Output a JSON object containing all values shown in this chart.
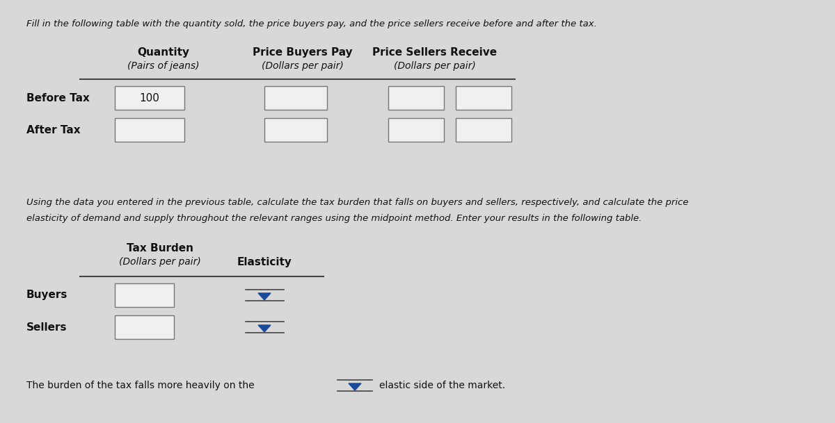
{
  "bg_color": "#d8d8d8",
  "title_text": "Fill in the following table with the quantity sold, the price buyers pay, and the price sellers receive before and after the tax.",
  "table1_col_headers": [
    "Quantity",
    "Price Buyers Pay",
    "Price Sellers Receive"
  ],
  "table1_col_subheaders": [
    "(Pairs of jeans)",
    "(Dollars per pair)",
    "(Dollars per pair)"
  ],
  "table1_rows": [
    "Before Tax",
    "After Tax"
  ],
  "table1_value": "100",
  "table2_instruction_line1": "Using the data you entered in the previous table, calculate the tax burden that falls on buyers and sellers, respectively, and calculate the price",
  "table2_instruction_line2": "elasticity of demand and supply throughout the relevant ranges using the midpoint method. Enter your results in the following table.",
  "table2_header1": "Tax Burden",
  "table2_subheader1": "(Dollars per pair)",
  "table2_subheader2": "Elasticity",
  "table2_rows": [
    "Buyers",
    "Sellers"
  ],
  "footer_text1": "The burden of the tax falls more heavily on the",
  "footer_text2": "elastic side of the market.",
  "box_facecolor": "#f0f0f0",
  "box_edgecolor": "#777777",
  "text_color": "#111111",
  "line_color": "#444444",
  "arrow_color": "#1a4a9a"
}
